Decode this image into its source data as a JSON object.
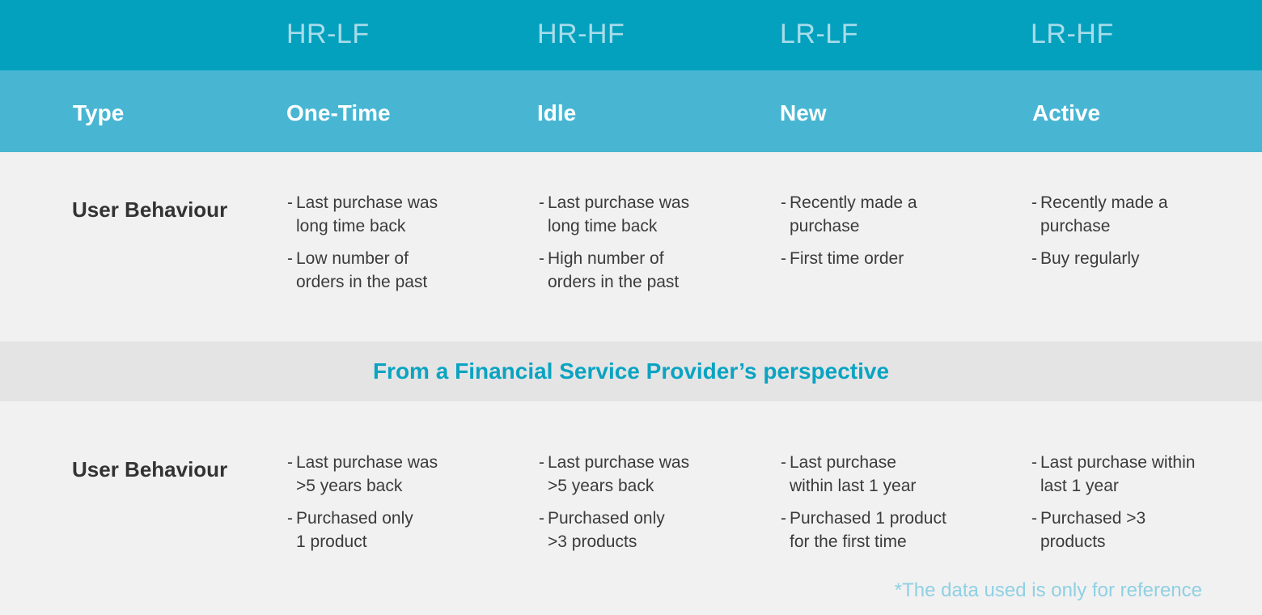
{
  "header": {
    "codes": [
      "HR-LF",
      "HR-HF",
      "LR-LF",
      "LR-HF"
    ],
    "type_label": "Type",
    "types": [
      "One-Time",
      "Idle",
      "New",
      "Active"
    ]
  },
  "general": {
    "row_label": "User Behaviour",
    "columns": [
      [
        "Last purchase was\nlong time back",
        "Low number of\norders in the past"
      ],
      [
        "Last purchase was\nlong time back",
        "High number of\norders in the past"
      ],
      [
        "Recently made a\npurchase",
        "First time order"
      ],
      [
        "Recently made a\npurchase",
        "Buy regularly"
      ]
    ]
  },
  "perspective": {
    "title": "From a Financial Service Provider’s perspective"
  },
  "financial": {
    "row_label": "User Behaviour",
    "columns": [
      [
        "Last purchase was\n>5 years back",
        "Purchased only\n1 product"
      ],
      [
        "Last purchase was\n>5 years back",
        "Purchased only\n>3 products"
      ],
      [
        "Last purchase\nwithin last 1 year",
        "Purchased 1 product\nfor the first time"
      ],
      [
        "Last purchase within\nlast 1 year",
        "Purchased >3\nproducts"
      ]
    ]
  },
  "footnote": "*The data used is only for reference",
  "colors": {
    "header_dark": "#04a1be",
    "header_light": "#48b6d3",
    "body_bg": "#f1f1f1",
    "divider_bg": "#e4e4e4",
    "accent_text": "#0aa3c2",
    "footnote_text": "#8fd0e3"
  }
}
